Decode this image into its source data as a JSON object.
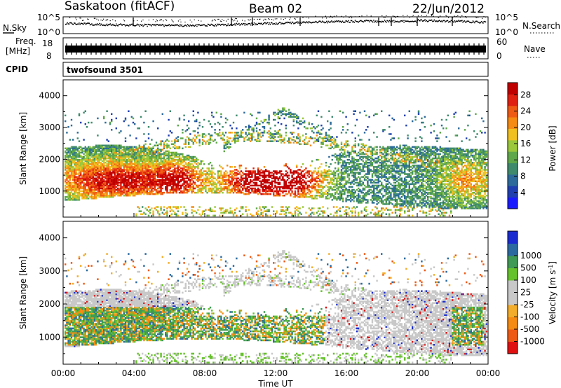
{
  "header": {
    "station": "Saskatoon (fitACF)",
    "beam": "Beam 02",
    "date": "22/Jun/2012"
  },
  "strips": {
    "nsky_label": "N.Sky",
    "nsky_ticks": [
      "10^5",
      "10^0"
    ],
    "nsearch_label": "N.Search",
    "nsearch_ticks": [
      "10^5",
      "10^0"
    ],
    "freq_label_1": "Freq.",
    "freq_label_2": "[MHz]",
    "freq_ticks": [
      "18",
      "8"
    ],
    "nave_label": "Nave",
    "nave_ticks": [
      "60",
      "0"
    ],
    "cpid_label": "CPID",
    "cpid_value": "twofsound 3501"
  },
  "colors": {
    "power": [
      "#1a1aff",
      "#1f3fb0",
      "#2b6a9a",
      "#3e8a6c",
      "#5fa84a",
      "#9ac83a",
      "#f0c020",
      "#f58b12",
      "#ee5a14",
      "#e02010",
      "#c00000"
    ],
    "velocity": [
      "#e01010",
      "#ee5a14",
      "#f58b12",
      "#f2ad2a",
      "#c8c8c8",
      "#c8c8c8",
      "#66c22c",
      "#3f9a55",
      "#2a6aa0",
      "#1a2ccf"
    ]
  },
  "chart_data": [
    {
      "type": "heatmap",
      "panel": "power",
      "ylabel": "Slant Range [km]",
      "yticks": [
        "1000",
        "2000",
        "3000",
        "4000"
      ],
      "ylim": [
        180,
        4500
      ],
      "xlim": [
        "00:00",
        "24:00"
      ],
      "colorbar_label": "Power [dB]",
      "colorbar_ticks": [
        "4",
        "8",
        "12",
        "16",
        "20",
        "24",
        "28"
      ],
      "colorbar_range": [
        0,
        31
      ]
    },
    {
      "type": "heatmap",
      "panel": "velocity",
      "ylabel": "Slant Range [km]",
      "yticks": [
        "1000",
        "2000",
        "3000",
        "4000"
      ],
      "ylim": [
        180,
        4500
      ],
      "xlabel": "Time UT",
      "xticks": [
        "00:00",
        "04:00",
        "08:00",
        "12:00",
        "16:00",
        "20:00",
        "00:00"
      ],
      "xlim": [
        "00:00",
        "24:00"
      ],
      "colorbar_label": "Velocity [m s",
      "colorbar_label_sup": "-1",
      "colorbar_label_end": "]",
      "colorbar_ticks": [
        "-1000",
        "-500",
        "-100",
        "-25",
        "25",
        "100",
        "500",
        "1000"
      ]
    }
  ]
}
